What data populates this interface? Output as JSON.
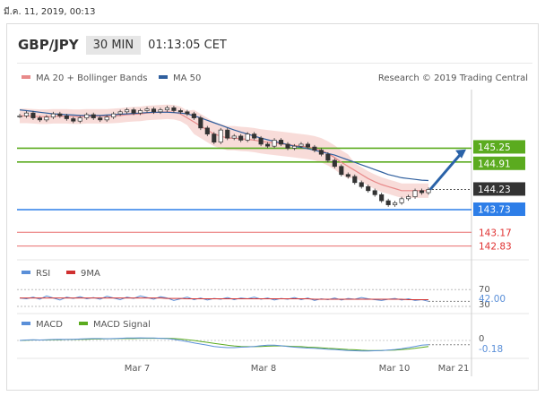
{
  "top_date": "มี.ค. 11, 2019, 00:13",
  "header": {
    "pair": "GBP/JPY",
    "timeframe": "30 MIN",
    "time": "01:13:05 CET"
  },
  "chart_data": [
    {
      "type": "line",
      "title": "GBP/JPY",
      "legend": [
        "MA 20 + Bollinger Bands",
        "MA 50"
      ],
      "credit": "Research © 2019 Trading Central",
      "x_ticks": [
        "Mar 7",
        "Mar 8",
        "Mar 10",
        "Mar 21"
      ],
      "ylim": [
        142.6,
        146.7
      ],
      "levels": [
        {
          "value": 145.25,
          "label": "145.25",
          "color": "#5bab1f"
        },
        {
          "value": 144.91,
          "label": "144.91",
          "color": "#5bab1f"
        },
        {
          "value": 144.23,
          "label": "144.23",
          "color": "#333333"
        },
        {
          "value": 143.73,
          "label": "143.73",
          "color": "#2d7ee8"
        },
        {
          "value": 143.17,
          "label": "143.17",
          "color": "#e03030"
        },
        {
          "value": 142.83,
          "label": "142.83",
          "color": "#e03030"
        }
      ],
      "series": [
        {
          "name": "price",
          "values": [
            146.05,
            146.12,
            146.0,
            145.95,
            146.02,
            146.1,
            146.05,
            145.98,
            145.92,
            146.0,
            146.08,
            146.0,
            145.95,
            146.02,
            146.1,
            146.15,
            146.2,
            146.12,
            146.18,
            146.22,
            146.15,
            146.2,
            146.25,
            146.18,
            146.15,
            146.1,
            146.0,
            145.75,
            145.6,
            145.4,
            145.7,
            145.5,
            145.55,
            145.45,
            145.6,
            145.5,
            145.35,
            145.3,
            145.45,
            145.35,
            145.25,
            145.3,
            145.35,
            145.28,
            145.2,
            145.1,
            144.95,
            144.8,
            144.6,
            144.55,
            144.4,
            144.3,
            144.2,
            144.1,
            143.95,
            143.85,
            143.9,
            144.0,
            144.05,
            144.2,
            144.15,
            144.23
          ]
        },
        {
          "name": "MA 20",
          "values": [
            146.05,
            146.05,
            146.04,
            146.03,
            146.03,
            146.04,
            146.04,
            146.04,
            146.03,
            146.03,
            146.04,
            146.04,
            146.04,
            146.04,
            146.05,
            146.06,
            146.08,
            146.09,
            146.1,
            146.12,
            146.13,
            146.14,
            146.15,
            146.14,
            146.1,
            146.0,
            145.9,
            145.8,
            145.7,
            145.6,
            145.55,
            145.5,
            145.5,
            145.48,
            145.47,
            145.45,
            145.42,
            145.4,
            145.38,
            145.36,
            145.34,
            145.32,
            145.3,
            145.28,
            145.25,
            145.2,
            145.12,
            145.02,
            144.9,
            144.8,
            144.7,
            144.6,
            144.5,
            144.42,
            144.35,
            144.3,
            144.25,
            144.2,
            144.2,
            144.2,
            144.2,
            144.2
          ]
        },
        {
          "name": "MA 50",
          "values": [
            146.2,
            146.18,
            146.16,
            146.14,
            146.12,
            146.1,
            146.09,
            146.08,
            146.07,
            146.06,
            146.06,
            146.06,
            146.06,
            146.07,
            146.08,
            146.09,
            146.1,
            146.11,
            146.12,
            146.13,
            146.14,
            146.14,
            146.14,
            146.13,
            146.12,
            146.1,
            146.05,
            146.0,
            145.94,
            145.88,
            145.82,
            145.76,
            145.7,
            145.65,
            145.6,
            145.55,
            145.5,
            145.46,
            145.42,
            145.38,
            145.34,
            145.3,
            145.27,
            145.24,
            145.2,
            145.16,
            145.12,
            145.08,
            145.02,
            144.96,
            144.9,
            144.84,
            144.78,
            144.72,
            144.66,
            144.6,
            144.56,
            144.52,
            144.5,
            144.48,
            144.46,
            144.45
          ]
        }
      ]
    },
    {
      "type": "line",
      "legend": [
        "RSI",
        "9MA"
      ],
      "ticks": [
        "70",
        "30"
      ],
      "value_label": "42.00",
      "ylim": [
        0,
        100
      ],
      "series": [
        {
          "name": "RSI",
          "values": [
            50,
            48,
            52,
            47,
            55,
            50,
            45,
            52,
            49,
            53,
            48,
            51,
            47,
            54,
            50,
            46,
            52,
            49,
            55,
            51,
            47,
            53,
            50,
            44,
            48,
            52,
            46,
            50,
            45,
            49,
            47,
            51,
            46,
            50,
            48,
            52,
            47,
            50,
            45,
            49,
            47,
            51,
            46,
            50,
            44,
            48,
            46,
            50,
            45,
            49,
            47,
            51,
            48,
            46,
            44,
            47,
            49,
            45,
            48,
            44,
            46,
            42
          ]
        },
        {
          "name": "9MA",
          "values": [
            50,
            50,
            50,
            50,
            50,
            50,
            50,
            50,
            50,
            50,
            50,
            50,
            50,
            50,
            50,
            50,
            50,
            50,
            50,
            50,
            50,
            50,
            49,
            49,
            49,
            48,
            48,
            48,
            48,
            48,
            48,
            48,
            48,
            48,
            48,
            48,
            48,
            48,
            48,
            48,
            48,
            48,
            48,
            48,
            47,
            47,
            47,
            47,
            47,
            47,
            47,
            47,
            47,
            47,
            47,
            47,
            47,
            47,
            46,
            46,
            46,
            46
          ]
        }
      ]
    },
    {
      "type": "line",
      "legend": [
        "MACD",
        "MACD Signal"
      ],
      "ticks": [
        "0"
      ],
      "value_label": "-0.18",
      "ylim": [
        -0.6,
        0.3
      ],
      "series": [
        {
          "name": "MACD",
          "values": [
            0.0,
            0.02,
            0.03,
            0.02,
            0.03,
            0.04,
            0.05,
            0.04,
            0.05,
            0.06,
            0.07,
            0.08,
            0.08,
            0.07,
            0.08,
            0.09,
            0.1,
            0.1,
            0.11,
            0.1,
            0.1,
            0.09,
            0.08,
            0.05,
            0.0,
            -0.05,
            -0.1,
            -0.15,
            -0.2,
            -0.25,
            -0.28,
            -0.3,
            -0.3,
            -0.28,
            -0.27,
            -0.25,
            -0.22,
            -0.2,
            -0.2,
            -0.22,
            -0.25,
            -0.28,
            -0.3,
            -0.32,
            -0.33,
            -0.35,
            -0.37,
            -0.38,
            -0.4,
            -0.42,
            -0.43,
            -0.44,
            -0.44,
            -0.43,
            -0.42,
            -0.4,
            -0.38,
            -0.35,
            -0.3,
            -0.25,
            -0.2,
            -0.18
          ]
        },
        {
          "name": "MACD Signal",
          "values": [
            0.0,
            0.01,
            0.02,
            0.02,
            0.02,
            0.03,
            0.03,
            0.04,
            0.04,
            0.05,
            0.05,
            0.06,
            0.06,
            0.07,
            0.07,
            0.08,
            0.08,
            0.08,
            0.09,
            0.09,
            0.09,
            0.09,
            0.09,
            0.08,
            0.06,
            0.03,
            0.0,
            -0.04,
            -0.08,
            -0.12,
            -0.16,
            -0.2,
            -0.23,
            -0.25,
            -0.26,
            -0.26,
            -0.25,
            -0.24,
            -0.23,
            -0.23,
            -0.24,
            -0.25,
            -0.26,
            -0.28,
            -0.29,
            -0.31,
            -0.33,
            -0.34,
            -0.36,
            -0.38,
            -0.39,
            -0.41,
            -0.42,
            -0.42,
            -0.42,
            -0.41,
            -0.4,
            -0.38,
            -0.36,
            -0.33,
            -0.29,
            -0.25
          ]
        }
      ]
    }
  ],
  "colors": {
    "ma20": "#e88a8a",
    "band": "#f6d3d0",
    "ma50": "#2f5f9e",
    "green": "#5bab1f",
    "blue": "#2d7ee8",
    "red": "#e03030",
    "arrow": "#2a62a8",
    "rsi": "#5a8fd8",
    "rsi_ma": "#d03030",
    "macd": "#5a8fd8",
    "macd_signal": "#5bab1f"
  }
}
